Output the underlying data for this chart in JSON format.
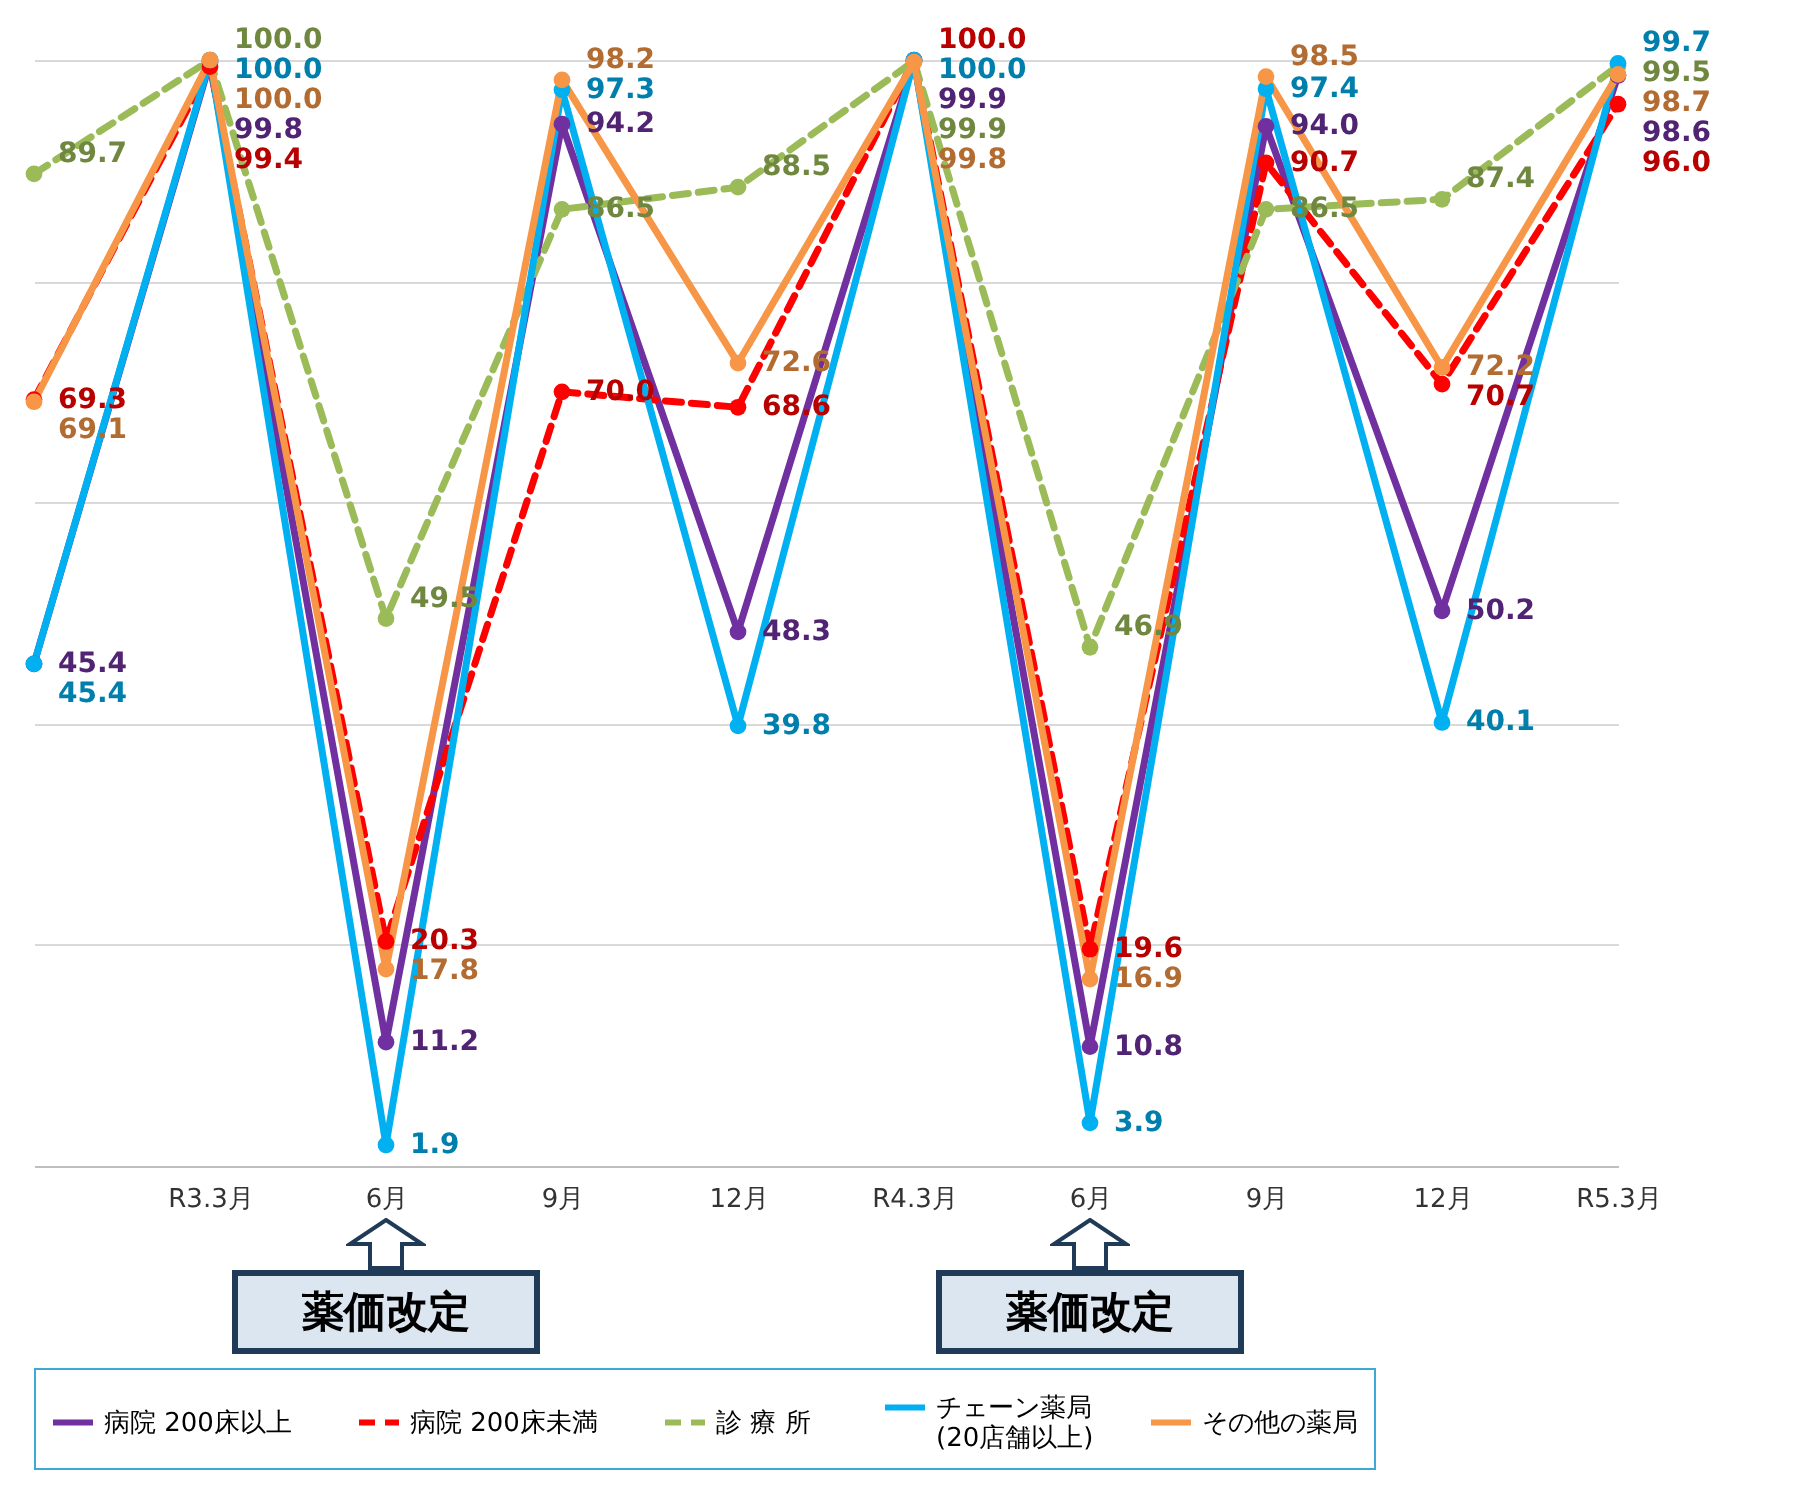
{
  "chart_data": {
    "type": "line",
    "categories": [
      null,
      "R3.3月",
      "6月",
      "9月",
      "12月",
      "R4.3月",
      "6月",
      "9月",
      "12月",
      "R5.3月"
    ],
    "series": [
      {
        "name": "病院  200床以上",
        "color": "#7030a0",
        "line_style": "solid",
        "values": [
          45.4,
          99.8,
          11.2,
          94.2,
          48.3,
          99.9,
          10.8,
          94.0,
          50.2,
          98.6
        ],
        "value_labels": [
          "45.4",
          "99.8",
          "11.2",
          "94.2",
          "48.3",
          "99.9",
          "10.8",
          "94.0",
          "50.2",
          "98.6"
        ]
      },
      {
        "name": "病院  200床未満",
        "color": "#ff0000",
        "line_style": "dashed",
        "values": [
          69.3,
          99.4,
          20.3,
          70.0,
          68.6,
          100.0,
          19.6,
          90.7,
          70.7,
          96.0
        ],
        "value_labels": [
          "69.3",
          "99.4",
          "20.3",
          "70.0",
          "68.6",
          "100.0",
          "19.6",
          "90.7",
          "70.7",
          "96.0"
        ]
      },
      {
        "name": "診  療  所",
        "color": "#9bbb59",
        "line_style": "dashed",
        "values": [
          89.7,
          100.0,
          49.5,
          86.5,
          88.5,
          99.9,
          46.9,
          86.5,
          87.4,
          99.5
        ],
        "value_labels": [
          "89.7",
          "100.0",
          "49.5",
          "86.5",
          "88.5",
          "99.9",
          "46.9",
          "86.5",
          "87.4",
          "99.5"
        ]
      },
      {
        "name": "チェーン薬局\n(20店舗以上)",
        "color": "#00b0f0",
        "line_style": "solid",
        "values": [
          45.4,
          100.0,
          1.9,
          97.3,
          39.8,
          100.0,
          3.9,
          97.4,
          40.1,
          99.7
        ],
        "value_labels": [
          "45.4",
          "100.0",
          "1.9",
          "97.3",
          "39.8",
          "100.0",
          "3.9",
          "97.4",
          "40.1",
          "99.7"
        ]
      },
      {
        "name": "その他の薬局",
        "color": "#f79646",
        "line_style": "solid",
        "values": [
          69.1,
          100.0,
          17.8,
          98.2,
          72.6,
          99.8,
          16.9,
          98.5,
          72.2,
          98.7
        ],
        "value_labels": [
          "69.1",
          "100.0",
          "17.8",
          "98.2",
          "72.6",
          "99.8",
          "16.9",
          "98.5",
          "72.2",
          "98.7"
        ]
      }
    ],
    "ylim": [
      0,
      100
    ],
    "yticks": [
      {
        "value": 0,
        "label": null
      },
      {
        "value": 20,
        "label": null
      },
      {
        "value": 40,
        "label": null
      },
      {
        "value": 60,
        "label": null
      },
      {
        "value": 80,
        "label": null
      },
      {
        "value": 100,
        "label": null
      }
    ],
    "grid": "y",
    "tick_labels": "x",
    "marker": "circle",
    "legend": "bottom",
    "annotations": [
      "薬価改定",
      "薬価改定"
    ]
  }
}
